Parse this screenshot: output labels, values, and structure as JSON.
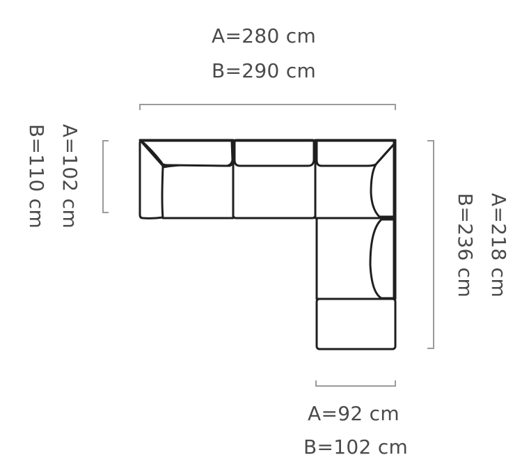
{
  "dimensions": {
    "top": {
      "a": "A=280 cm",
      "b": "B=290 cm"
    },
    "left": {
      "a": "A=102 cm",
      "b": "B=110 cm"
    },
    "right": {
      "a": "A=218 cm",
      "b": "B=236 cm"
    },
    "bottom": {
      "a": "A=92 cm",
      "b": "B=102 cm"
    }
  },
  "colors": {
    "outline": "#1f1f1f",
    "bracket": "#9a9a9a",
    "text": "#4a4a4a"
  }
}
